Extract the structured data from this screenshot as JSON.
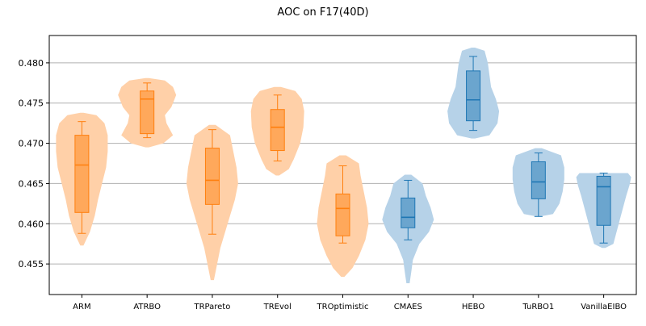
{
  "chart_data": {
    "type": "violin",
    "title": "AOC on F17(40D)",
    "xlabel": "",
    "ylabel": "",
    "ylim": [
      0.4512,
      0.4834
    ],
    "yticks": [
      0.455,
      0.46,
      0.465,
      0.47,
      0.475,
      0.48
    ],
    "ytick_labels": [
      "0.455",
      "0.460",
      "0.465",
      "0.470",
      "0.475",
      "0.480"
    ],
    "grid": "horizontal",
    "colors": {
      "orange": "#ff7f0e",
      "orange_fill": "#ffd0a8",
      "blue": "#1f77b4",
      "blue_fill": "#b6d2e8",
      "grid": "#b0b0b0"
    },
    "categories": [
      "ARM",
      "ATRBO",
      "TRPareto",
      "TREvol",
      "TROptimistic",
      "CMAES",
      "HEBO",
      "TuRBO1",
      "VanillaEIBO"
    ],
    "groups": [
      {
        "name": "ARM",
        "color": "orange",
        "violin_min": 0.4573,
        "violin_max": 0.4738,
        "whisker_low": 0.4588,
        "whisker_high": 0.4727,
        "q1": 0.4614,
        "median": 0.4673,
        "q3": 0.471,
        "shape": [
          [
            0.4573,
            2
          ],
          [
            0.459,
            10
          ],
          [
            0.461,
            16
          ],
          [
            0.463,
            20
          ],
          [
            0.465,
            25
          ],
          [
            0.467,
            30
          ],
          [
            0.469,
            32
          ],
          [
            0.471,
            32
          ],
          [
            0.4725,
            28
          ],
          [
            0.4735,
            18
          ],
          [
            0.4738,
            2
          ]
        ]
      },
      {
        "name": "ATRBO",
        "color": "orange",
        "violin_min": 0.4695,
        "violin_max": 0.4781,
        "whisker_low": 0.4707,
        "whisker_high": 0.4775,
        "q1": 0.4712,
        "median": 0.4755,
        "q3": 0.4765,
        "shape": [
          [
            0.4695,
            2
          ],
          [
            0.47,
            20
          ],
          [
            0.471,
            32
          ],
          [
            0.4725,
            24
          ],
          [
            0.4735,
            22
          ],
          [
            0.4745,
            30
          ],
          [
            0.476,
            36
          ],
          [
            0.477,
            32
          ],
          [
            0.4778,
            22
          ],
          [
            0.4781,
            2
          ]
        ]
      },
      {
        "name": "TRPareto",
        "color": "orange",
        "violin_min": 0.453,
        "violin_max": 0.4723,
        "whisker_low": 0.4587,
        "whisker_high": 0.4717,
        "q1": 0.4624,
        "median": 0.4654,
        "q3": 0.4694,
        "shape": [
          [
            0.453,
            2
          ],
          [
            0.455,
            6
          ],
          [
            0.457,
            10
          ],
          [
            0.459,
            16
          ],
          [
            0.461,
            22
          ],
          [
            0.463,
            28
          ],
          [
            0.465,
            32
          ],
          [
            0.467,
            30
          ],
          [
            0.469,
            26
          ],
          [
            0.471,
            22
          ],
          [
            0.4723,
            4
          ]
        ]
      },
      {
        "name": "TREvol",
        "color": "orange",
        "violin_min": 0.466,
        "violin_max": 0.477,
        "whisker_low": 0.4678,
        "whisker_high": 0.476,
        "q1": 0.4691,
        "median": 0.472,
        "q3": 0.4742,
        "shape": [
          [
            0.466,
            2
          ],
          [
            0.4668,
            14
          ],
          [
            0.468,
            20
          ],
          [
            0.469,
            24
          ],
          [
            0.47,
            28
          ],
          [
            0.472,
            32
          ],
          [
            0.474,
            33
          ],
          [
            0.4755,
            30
          ],
          [
            0.4765,
            22
          ],
          [
            0.477,
            4
          ]
        ]
      },
      {
        "name": "TROptimistic",
        "color": "orange",
        "violin_min": 0.4534,
        "violin_max": 0.4685,
        "whisker_low": 0.4576,
        "whisker_high": 0.4672,
        "q1": 0.4585,
        "median": 0.4619,
        "q3": 0.4637,
        "shape": [
          [
            0.4534,
            2
          ],
          [
            0.4545,
            12
          ],
          [
            0.456,
            20
          ],
          [
            0.458,
            28
          ],
          [
            0.46,
            32
          ],
          [
            0.462,
            30
          ],
          [
            0.464,
            26
          ],
          [
            0.466,
            22
          ],
          [
            0.4675,
            20
          ],
          [
            0.4685,
            4
          ]
        ]
      },
      {
        "name": "CMAES",
        "color": "blue",
        "violin_min": 0.4526,
        "violin_max": 0.4661,
        "whisker_low": 0.458,
        "whisker_high": 0.4654,
        "q1": 0.4595,
        "median": 0.4608,
        "q3": 0.4632,
        "shape": [
          [
            0.4526,
            2
          ],
          [
            0.454,
            4
          ],
          [
            0.4555,
            6
          ],
          [
            0.4575,
            14
          ],
          [
            0.459,
            26
          ],
          [
            0.4605,
            32
          ],
          [
            0.462,
            28
          ],
          [
            0.4635,
            22
          ],
          [
            0.465,
            18
          ],
          [
            0.4661,
            4
          ]
        ]
      },
      {
        "name": "HEBO",
        "color": "blue",
        "violin_min": 0.4706,
        "violin_max": 0.4819,
        "whisker_low": 0.4716,
        "whisker_high": 0.4808,
        "q1": 0.4728,
        "median": 0.4754,
        "q3": 0.479,
        "shape": [
          [
            0.4706,
            2
          ],
          [
            0.471,
            20
          ],
          [
            0.4725,
            30
          ],
          [
            0.474,
            32
          ],
          [
            0.4755,
            28
          ],
          [
            0.477,
            22
          ],
          [
            0.4785,
            20
          ],
          [
            0.48,
            18
          ],
          [
            0.4815,
            14
          ],
          [
            0.4819,
            2
          ]
        ]
      },
      {
        "name": "TuRBO1",
        "color": "blue",
        "violin_min": 0.4609,
        "violin_max": 0.4694,
        "whisker_low": 0.4609,
        "whisker_high": 0.4688,
        "q1": 0.4631,
        "median": 0.4652,
        "q3": 0.4677,
        "shape": [
          [
            0.4609,
            2
          ],
          [
            0.4612,
            18
          ],
          [
            0.4625,
            26
          ],
          [
            0.464,
            30
          ],
          [
            0.4655,
            32
          ],
          [
            0.467,
            32
          ],
          [
            0.4685,
            28
          ],
          [
            0.4694,
            4
          ]
        ]
      },
      {
        "name": "VanillaEIBO",
        "color": "blue",
        "violin_min": 0.457,
        "violin_max": 0.4663,
        "whisker_low": 0.4576,
        "whisker_high": 0.4663,
        "q1": 0.4598,
        "median": 0.4646,
        "q3": 0.4659,
        "shape": [
          [
            0.457,
            2
          ],
          [
            0.4575,
            12
          ],
          [
            0.459,
            16
          ],
          [
            0.4605,
            20
          ],
          [
            0.462,
            24
          ],
          [
            0.4635,
            28
          ],
          [
            0.4648,
            32
          ],
          [
            0.4658,
            34
          ],
          [
            0.4663,
            30
          ]
        ]
      }
    ]
  }
}
